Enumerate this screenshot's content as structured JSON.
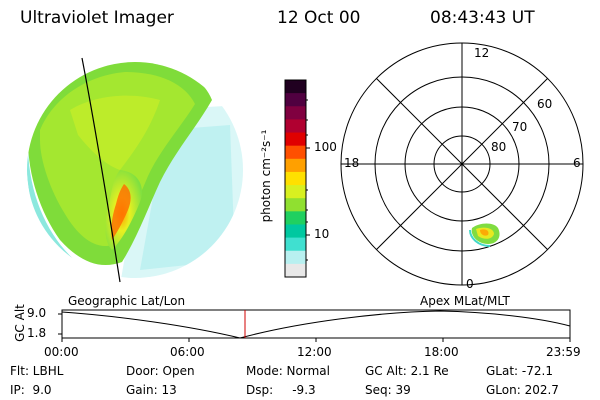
{
  "header": {
    "instrument": "Ultraviolet Imager",
    "date": "12 Oct 00",
    "time": "08:43:43 UT"
  },
  "colorbar": {
    "unit_label": "photon cm⁻²s⁻¹",
    "ticks": [
      "100",
      "10"
    ],
    "colors": [
      "#e8e8e8",
      "#b8f0f0",
      "#40e0d0",
      "#00c8a0",
      "#20d060",
      "#90e030",
      "#d8f020",
      "#ffe000",
      "#ffa000",
      "#ff5000",
      "#e00000",
      "#b00030",
      "#800040",
      "#500040",
      "#200020"
    ]
  },
  "polar_plot": {
    "mlt_labels": [
      "12",
      "18",
      "6",
      "0"
    ],
    "lat_labels": [
      "60",
      "70",
      "80"
    ]
  },
  "timeline": {
    "left_title": "Geographic Lat/Lon",
    "right_title": "Apex MLat/MLT",
    "axis_label": "GC Alt",
    "y_ticks": [
      "9.0",
      "1.8"
    ],
    "x_ticks": [
      "00:00",
      "06:00",
      "12:00",
      "18:00",
      "23:59"
    ]
  },
  "info": {
    "row1": {
      "flt": "Flt: LBHL",
      "door": "Door: Open",
      "mode": "Mode: Normal",
      "gc_alt": "GC Alt: 2.1 Re",
      "glat": "GLat: -72.1"
    },
    "row2": {
      "ip": "IP:  9.0",
      "gain": "Gain: 13",
      "dsp": "Dsp:     -9.3",
      "seq": "Seq: 39",
      "glon": "GLon: 202.7"
    }
  }
}
